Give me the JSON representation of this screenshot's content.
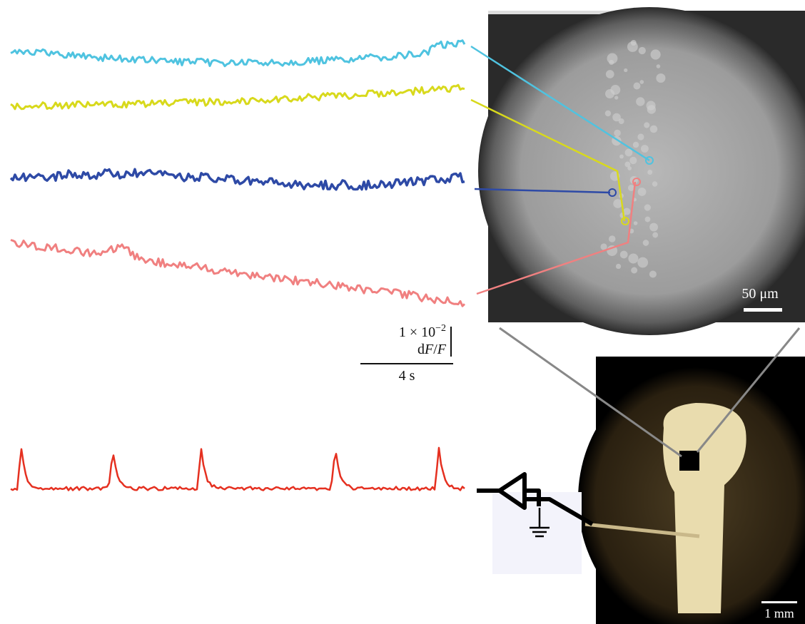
{
  "calibration": {
    "amplitude": "1 × 10",
    "exponent": "−2",
    "unit_d": "d",
    "unit_f1": "F",
    "unit_slash": "/",
    "unit_f2": "F",
    "time": "4 s"
  },
  "image_scale": "50 μm",
  "photo_scale": "1 mm"
}
